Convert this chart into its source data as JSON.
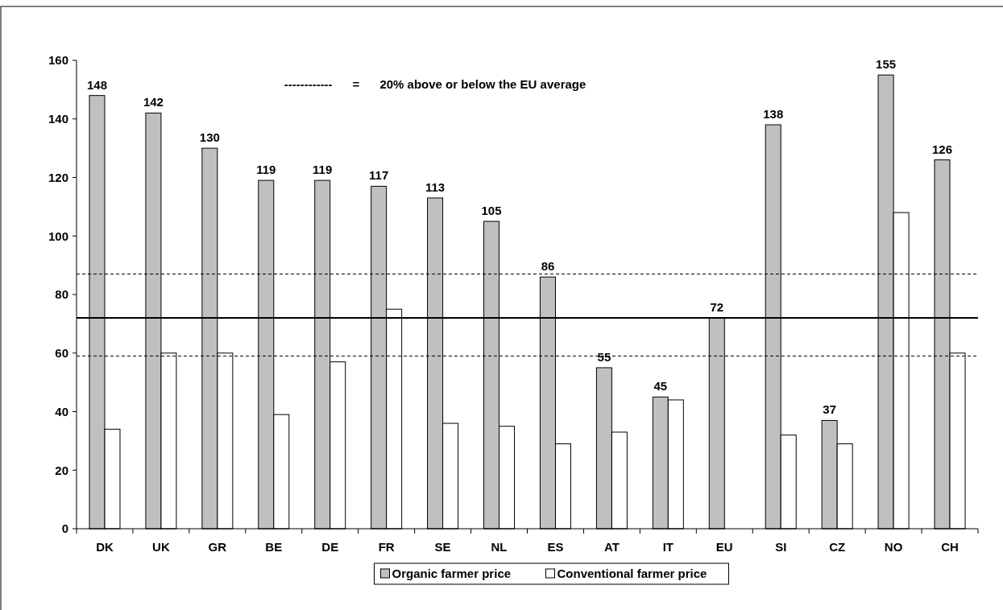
{
  "chart_data": {
    "type": "bar",
    "categories": [
      "DK",
      "UK",
      "GR",
      "BE",
      "DE",
      "FR",
      "SE",
      "NL",
      "ES",
      "AT",
      "IT",
      "EU",
      "SI",
      "CZ",
      "NO",
      "CH"
    ],
    "series": [
      {
        "name": "Organic farmer price",
        "color": "#c0c0c0",
        "values": [
          148,
          142,
          130,
          119,
          119,
          117,
          113,
          105,
          86,
          55,
          45,
          72,
          138,
          37,
          155,
          126
        ],
        "value_labels": [
          "148",
          "142",
          "130",
          "119",
          "119",
          "117",
          "113",
          "105",
          "86",
          "55",
          "45",
          "72",
          "138",
          "37",
          "155",
          "126"
        ]
      },
      {
        "name": "Conventional farmer price",
        "color": "#ffffff",
        "values": [
          34,
          60,
          60,
          39,
          57,
          75,
          36,
          35,
          29,
          33,
          44,
          null,
          32,
          29,
          108,
          60
        ]
      }
    ],
    "ylim": [
      0,
      160
    ],
    "yticks": [
      0,
      20,
      40,
      60,
      80,
      100,
      120,
      140,
      160
    ],
    "grid": false,
    "legend": "bottom",
    "ref_lines": [
      {
        "axis": "y",
        "value": 72,
        "color": "#000000",
        "line_style": "solid"
      },
      {
        "axis": "y",
        "value": 87,
        "color": "#000000",
        "line_style": "dashed"
      },
      {
        "axis": "y",
        "value": 59,
        "color": "#000000",
        "line_style": "dashed"
      }
    ],
    "annotations": [
      "------------      =      20% above or below the EU average"
    ]
  }
}
